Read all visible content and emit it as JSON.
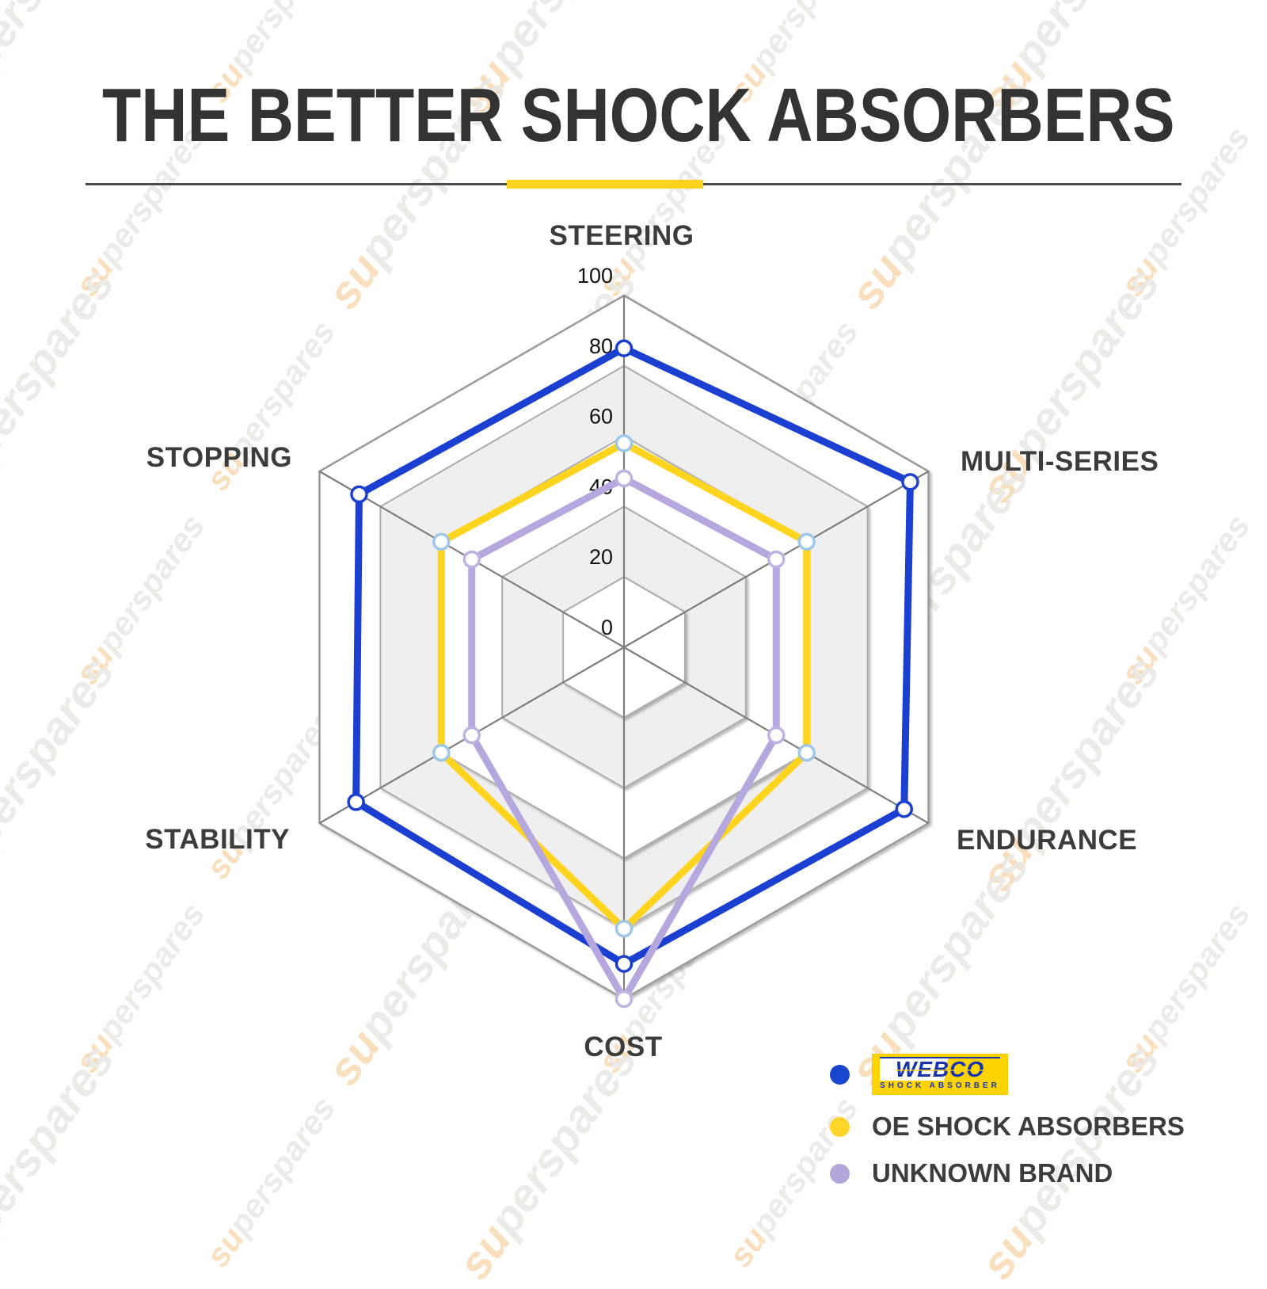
{
  "page": {
    "title": "THE BETTER SHOCK ABSORBERS",
    "accent_color": "#FFD21E",
    "divider_color": "#4a4a4a"
  },
  "watermark": {
    "text": "superspares"
  },
  "chart_data": {
    "type": "radar",
    "title": "THE BETTER SHOCK ABSORBERS",
    "categories": [
      "STEERING",
      "MULTI-SERIES",
      "ENDURANCE",
      "COST",
      "STABILITY",
      "STOPPING"
    ],
    "axis_ticks": [
      0,
      20,
      40,
      60,
      80,
      100
    ],
    "rmax": 100,
    "grid": {
      "band_fills": [
        "#FFFFFF",
        "#EFEFEF"
      ],
      "ring_stroke": "#ACACAC",
      "outer_ring_stroke": "#9B9B9B",
      "axis_line_stroke": "#7E7E7E",
      "tick_label_color": "#111111"
    },
    "legend_position": "bottom-right",
    "series": [
      {
        "name": "WEBCO SHOCK ABSORBER",
        "color": "#1B3FD0",
        "marker_stroke": "#1B3FD0",
        "values": [
          85,
          94,
          92,
          90,
          88,
          87
        ]
      },
      {
        "name": "OE SHOCK ABSORBERS",
        "color": "#FFD41F",
        "marker_stroke": "#9EC7E8",
        "values": [
          58,
          60,
          60,
          80,
          60,
          60
        ]
      },
      {
        "name": "UNKNOWN BRAND",
        "color": "#B6A7DE",
        "marker_stroke": "#C0B2E2",
        "values": [
          48,
          50,
          50,
          100,
          50,
          50
        ]
      }
    ]
  },
  "legend": {
    "items": [
      {
        "dot_color": "#1845CE",
        "brand_logo": {
          "brand": "WEBCO",
          "subtitle": "SHOCK ABSORBER",
          "bg": "#FFD400",
          "text_color": "#1733AE"
        }
      },
      {
        "dot_color": "#FFD42B",
        "label": "OE SHOCK ABSORBERS"
      },
      {
        "dot_color": "#B3A4D9",
        "label": "UNKNOWN BRAND"
      }
    ]
  }
}
